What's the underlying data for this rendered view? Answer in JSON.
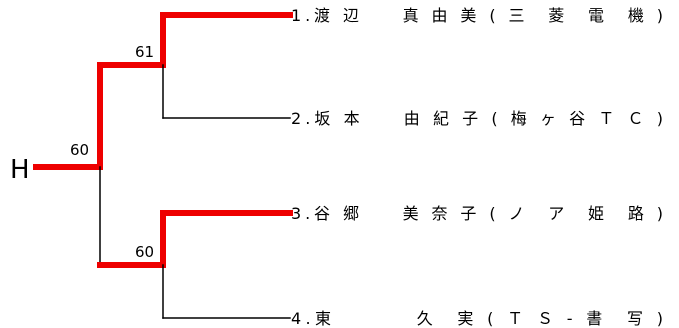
{
  "root": {
    "label": "H"
  },
  "colors": {
    "winner_line": "#ee0000",
    "base_line": "#000000"
  },
  "semifinal_top": {
    "score": "61",
    "winner": "upper"
  },
  "semifinal_bottom": {
    "score": "60",
    "winner": "upper"
  },
  "final": {
    "score": "60",
    "winner": "upper"
  },
  "players": [
    {
      "label": "1.渡 辺　　真 由 美 ( 三　菱　電　機 )",
      "advanced": true
    },
    {
      "label": "2.坂 本　　由 紀 子 ( 梅 ヶ 谷 Ｔ Ｃ )",
      "advanced": false
    },
    {
      "label": "3.谷 郷　　美 奈 子 ( ノ　ア　姫　路 )",
      "advanced": true
    },
    {
      "label": "4.東　　　　久　実 ( Ｔ Ｓ - 書　写 )",
      "advanced": false
    }
  ]
}
